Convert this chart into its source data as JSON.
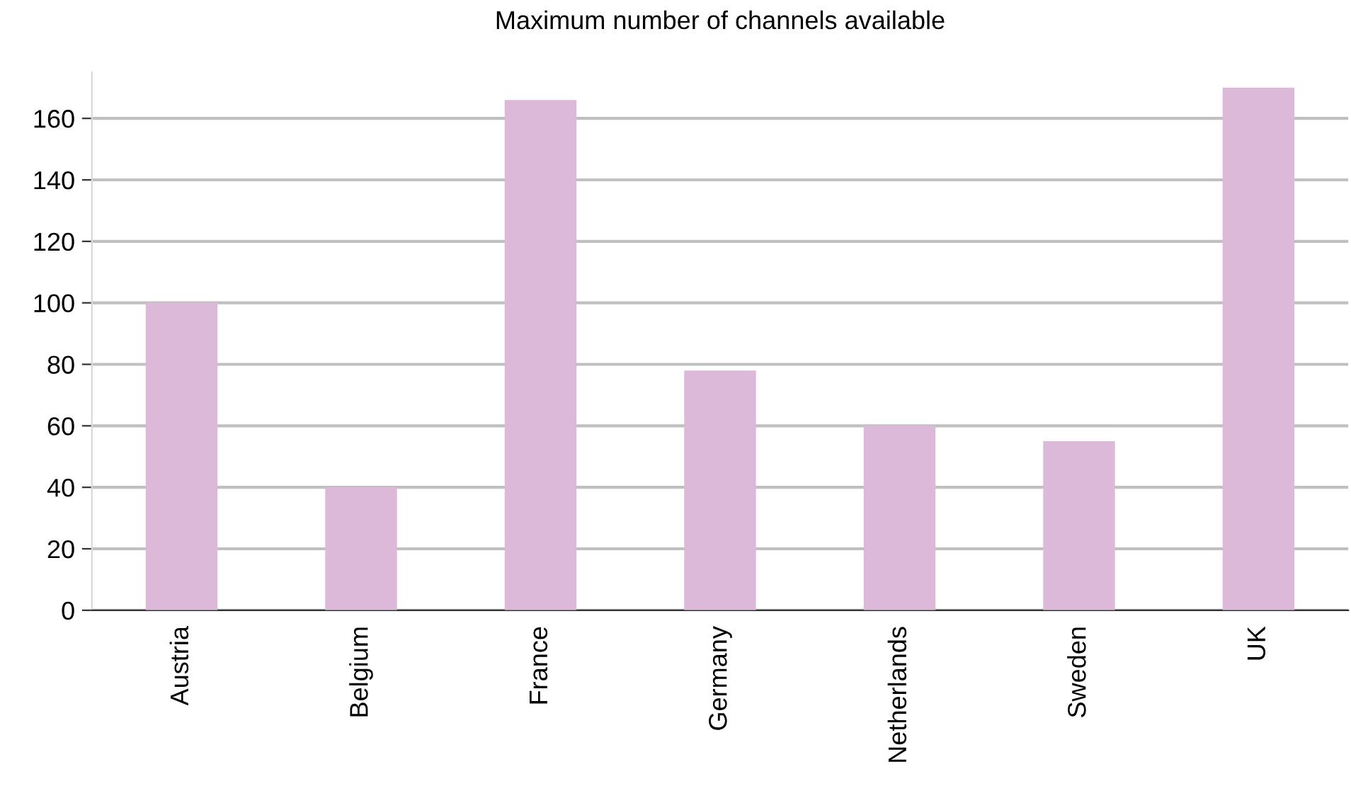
{
  "chart_data": {
    "type": "bar",
    "title": "Maximum number of channels available",
    "categories": [
      "Austria",
      "Belgium",
      "France",
      "Germany",
      "Netherlands",
      "Sweden",
      "UK"
    ],
    "values": [
      100,
      40,
      166,
      78,
      60,
      55,
      170
    ],
    "color": "#ddb9d9",
    "ylim": [
      0,
      175
    ],
    "yticks": [
      0,
      20,
      40,
      60,
      80,
      100,
      120,
      140,
      160
    ],
    "grid": "y",
    "legend": false
  }
}
